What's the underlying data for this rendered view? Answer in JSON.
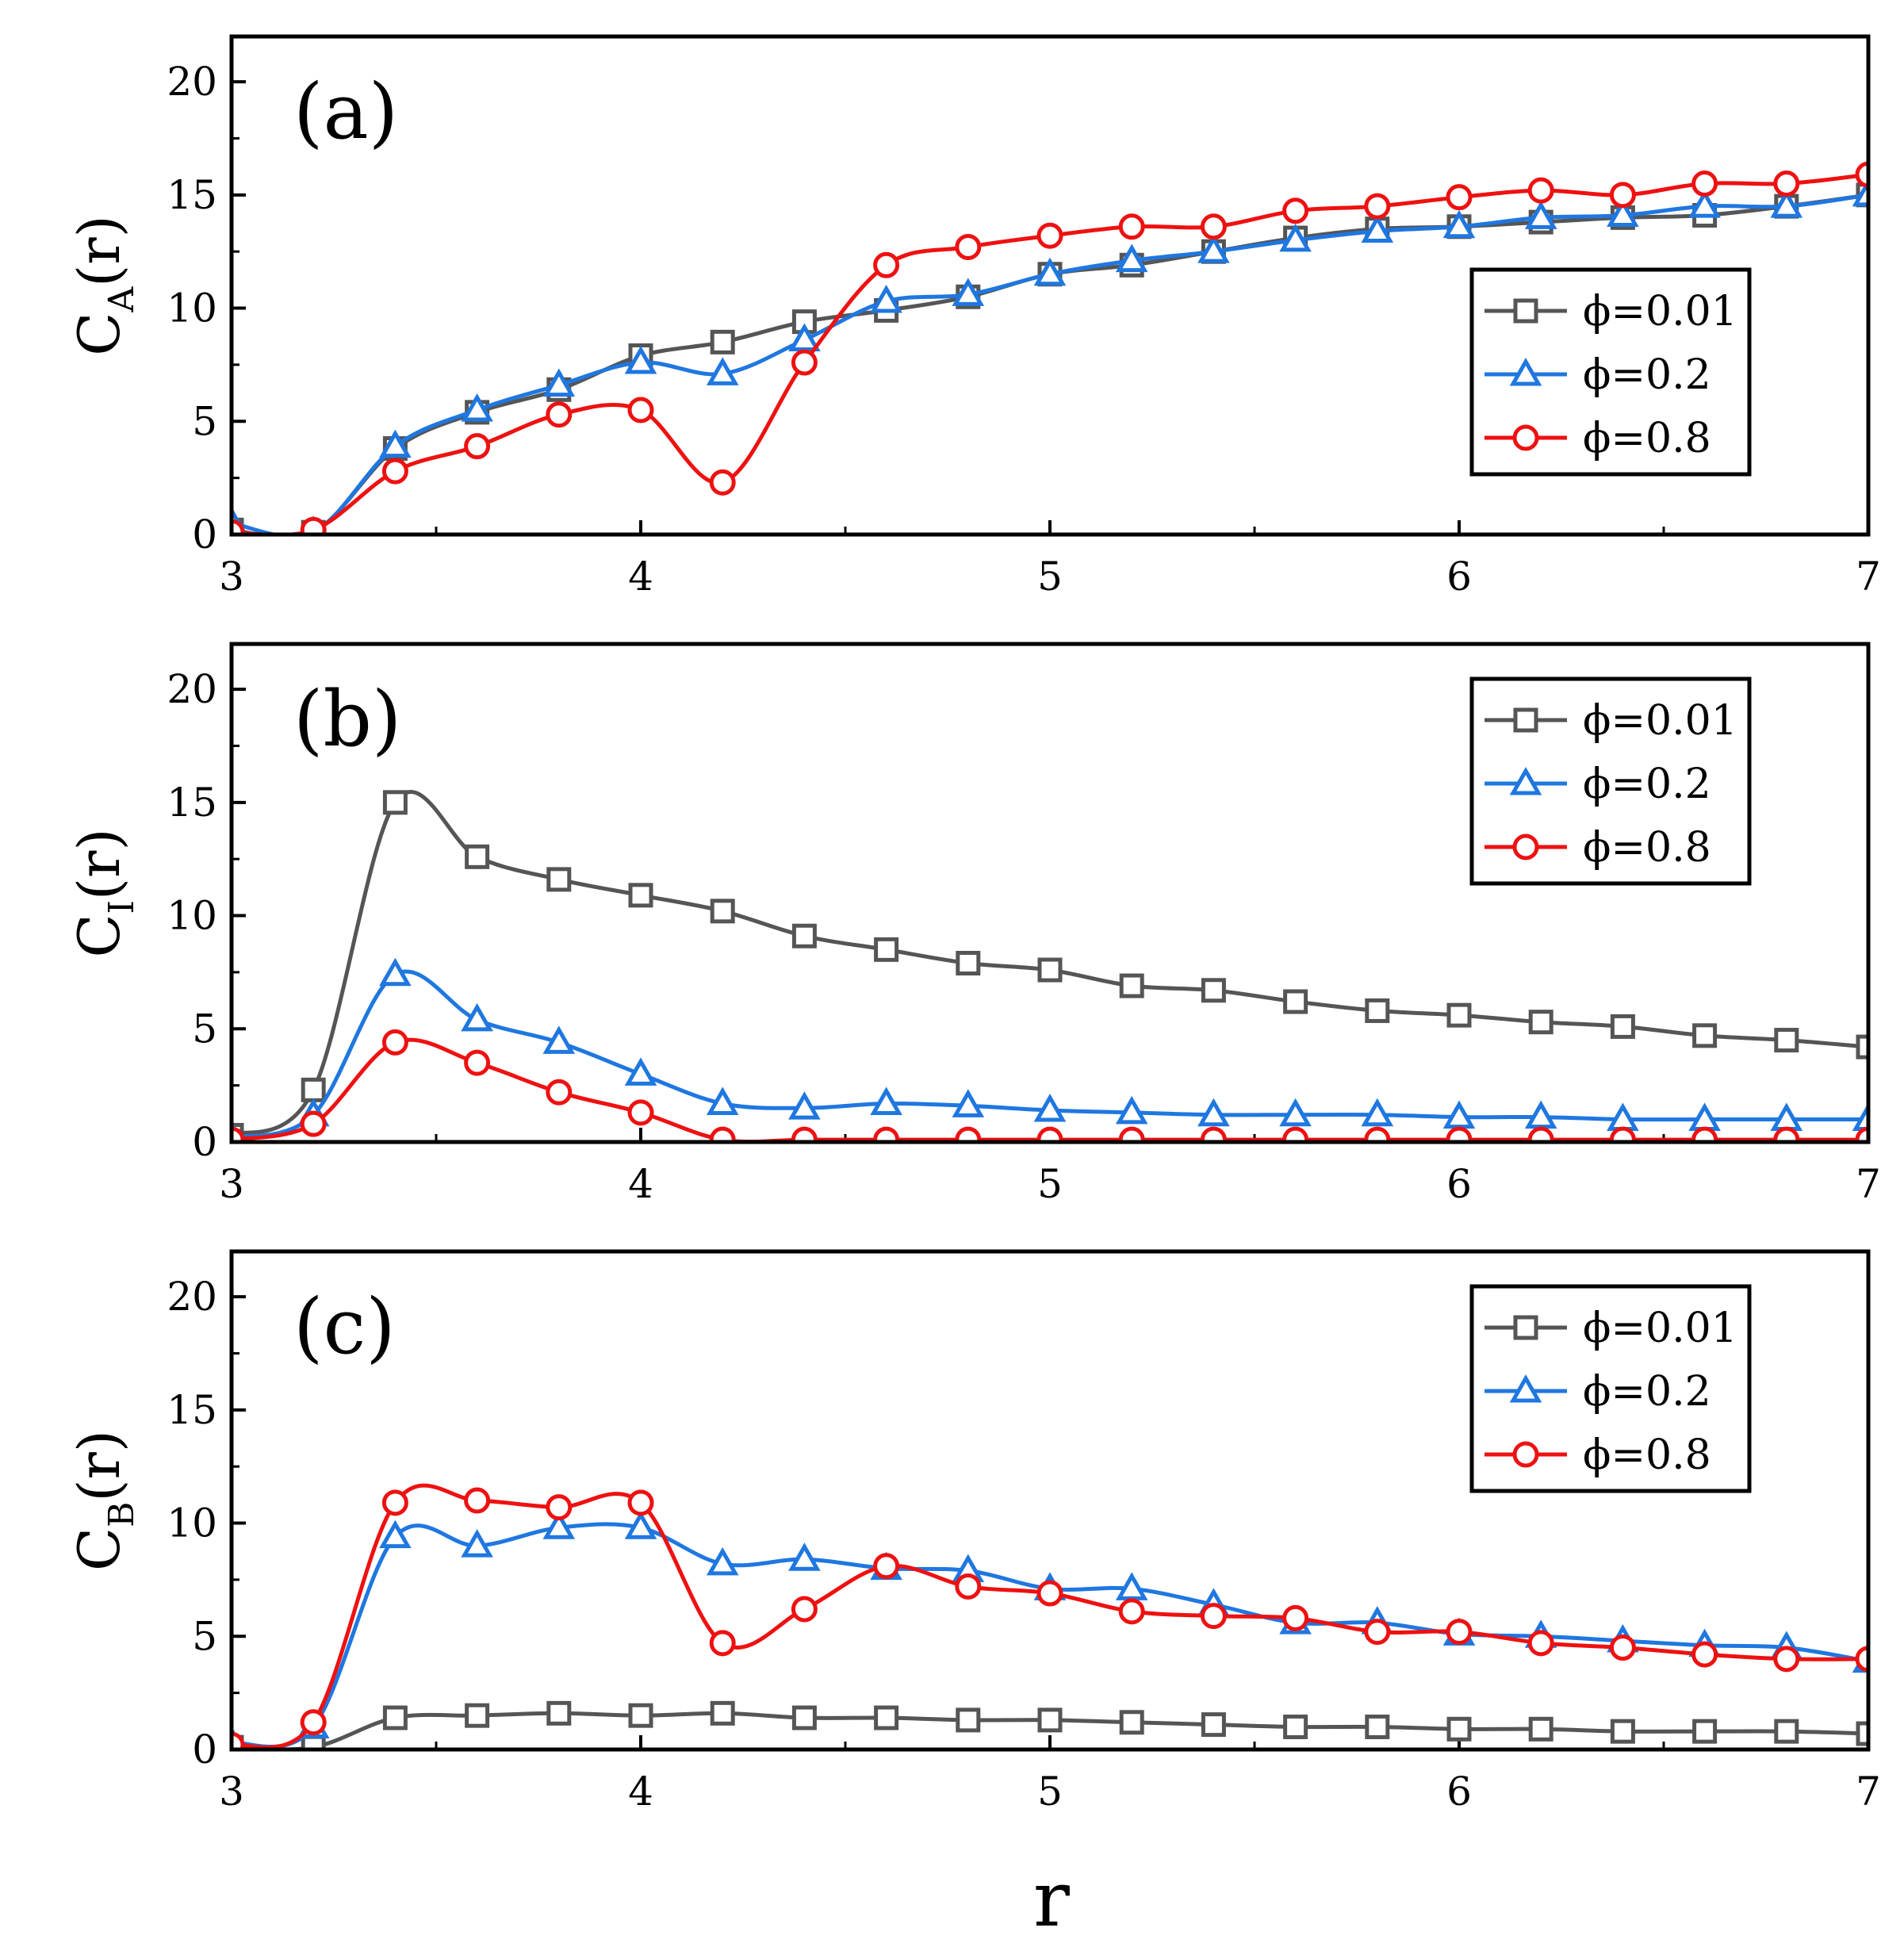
{
  "colors": {
    "phi_001": "#555555",
    "phi_02": "#1f77e0",
    "phi_08": "#ee1111"
  },
  "xlabel": "r",
  "chart_data": [
    {
      "type": "line",
      "panel_label": "(a)",
      "ylabel": {
        "main": "C",
        "sub": "A",
        "arg": "(r)"
      },
      "xlim": [
        3,
        7
      ],
      "ylim": [
        0,
        22
      ],
      "x_ticks": [
        "3",
        "4",
        "5",
        "6",
        "7"
      ],
      "y_ticks": [
        "0",
        "5",
        "10",
        "15",
        "20"
      ],
      "legend_position": "right-middle",
      "series": [
        {
          "name": "ϕ=0.01",
          "marker": "square",
          "color": "#555555",
          "x": [
            3.0,
            3.2,
            3.4,
            3.6,
            3.8,
            4.0,
            4.2,
            4.4,
            4.6,
            4.8,
            5.0,
            5.2,
            5.4,
            5.6,
            5.8,
            6.0,
            6.2,
            6.4,
            6.6,
            6.8,
            7.0
          ],
          "y": [
            0.2,
            0.1,
            3.8,
            5.4,
            6.4,
            7.9,
            8.5,
            9.4,
            9.9,
            10.5,
            11.5,
            11.9,
            12.5,
            13.1,
            13.5,
            13.6,
            13.8,
            14.0,
            14.1,
            14.5,
            15.0
          ]
        },
        {
          "name": "ϕ=0.2",
          "marker": "triangle",
          "color": "#1f77e0",
          "x": [
            3.0,
            3.2,
            3.4,
            3.6,
            3.8,
            4.0,
            4.2,
            4.4,
            4.6,
            4.8,
            5.0,
            5.2,
            5.4,
            5.6,
            5.8,
            6.0,
            6.2,
            6.4,
            6.6,
            6.8,
            7.0
          ],
          "y": [
            0.5,
            0.1,
            3.9,
            5.5,
            6.6,
            7.6,
            7.1,
            8.6,
            10.3,
            10.6,
            11.5,
            12.1,
            12.5,
            13.0,
            13.4,
            13.6,
            14.0,
            14.1,
            14.5,
            14.5,
            15.0
          ]
        },
        {
          "name": "ϕ=0.8",
          "marker": "circle",
          "color": "#ee1111",
          "x": [
            3.0,
            3.2,
            3.4,
            3.6,
            3.8,
            4.0,
            4.2,
            4.4,
            4.6,
            4.8,
            5.0,
            5.2,
            5.4,
            5.6,
            5.8,
            6.0,
            6.2,
            6.4,
            6.6,
            6.8,
            7.0
          ],
          "y": [
            0.1,
            0.2,
            2.8,
            3.9,
            5.3,
            5.5,
            2.3,
            7.6,
            11.9,
            12.7,
            13.2,
            13.6,
            13.6,
            14.3,
            14.5,
            14.9,
            15.2,
            15.0,
            15.5,
            15.5,
            15.9
          ]
        }
      ]
    },
    {
      "type": "line",
      "panel_label": "(b)",
      "ylabel": {
        "main": "C",
        "sub": "I",
        "arg": "(r)"
      },
      "xlim": [
        3,
        7
      ],
      "ylim": [
        0,
        22
      ],
      "x_ticks": [
        "3",
        "4",
        "5",
        "6",
        "7"
      ],
      "y_ticks": [
        "0",
        "5",
        "10",
        "15",
        "20"
      ],
      "legend_position": "top-right",
      "series": [
        {
          "name": "ϕ=0.01",
          "marker": "square",
          "color": "#555555",
          "x": [
            3.0,
            3.2,
            3.4,
            3.6,
            3.8,
            4.0,
            4.2,
            4.4,
            4.6,
            4.8,
            5.0,
            5.2,
            5.4,
            5.6,
            5.8,
            6.0,
            6.2,
            6.4,
            6.6,
            6.8,
            7.0
          ],
          "y": [
            0.3,
            2.3,
            15.0,
            12.6,
            11.6,
            10.9,
            10.2,
            9.1,
            8.5,
            7.9,
            7.6,
            6.9,
            6.7,
            6.2,
            5.8,
            5.6,
            5.3,
            5.1,
            4.7,
            4.5,
            4.2
          ]
        },
        {
          "name": "ϕ=0.2",
          "marker": "triangle",
          "color": "#1f77e0",
          "x": [
            3.0,
            3.2,
            3.4,
            3.6,
            3.8,
            4.0,
            4.2,
            4.4,
            4.6,
            4.8,
            5.0,
            5.2,
            5.4,
            5.6,
            5.8,
            6.0,
            6.2,
            6.4,
            6.6,
            6.8,
            7.0
          ],
          "y": [
            0.2,
            1.2,
            7.4,
            5.4,
            4.4,
            3.0,
            1.7,
            1.5,
            1.7,
            1.6,
            1.4,
            1.3,
            1.2,
            1.2,
            1.2,
            1.1,
            1.1,
            1.0,
            1.0,
            1.0,
            1.0
          ]
        },
        {
          "name": "ϕ=0.8",
          "marker": "circle",
          "color": "#ee1111",
          "x": [
            3.0,
            3.2,
            3.4,
            3.6,
            3.8,
            4.0,
            4.2,
            4.4,
            4.6,
            4.8,
            5.0,
            5.2,
            5.4,
            5.6,
            5.8,
            6.0,
            6.2,
            6.4,
            6.6,
            6.8,
            7.0
          ],
          "y": [
            0.1,
            0.8,
            4.4,
            3.5,
            2.2,
            1.3,
            0.1,
            0.1,
            0.1,
            0.1,
            0.1,
            0.1,
            0.1,
            0.1,
            0.1,
            0.1,
            0.1,
            0.1,
            0.1,
            0.1,
            0.1
          ]
        }
      ]
    },
    {
      "type": "line",
      "panel_label": "(c)",
      "ylabel": {
        "main": "C",
        "sub": "B",
        "arg": "(r)"
      },
      "xlim": [
        3,
        7
      ],
      "ylim": [
        0,
        22
      ],
      "x_ticks": [
        "3",
        "4",
        "5",
        "6",
        "7"
      ],
      "y_ticks": [
        "0",
        "5",
        "10",
        "15",
        "20"
      ],
      "legend_position": "top-right",
      "series": [
        {
          "name": "ϕ=0.01",
          "marker": "square",
          "color": "#555555",
          "x": [
            3.0,
            3.2,
            3.4,
            3.6,
            3.8,
            4.0,
            4.2,
            4.4,
            4.6,
            4.8,
            5.0,
            5.2,
            5.4,
            5.6,
            5.8,
            6.0,
            6.2,
            6.4,
            6.6,
            6.8,
            7.0
          ],
          "y": [
            0.1,
            0.1,
            1.4,
            1.5,
            1.6,
            1.5,
            1.6,
            1.4,
            1.4,
            1.3,
            1.3,
            1.2,
            1.1,
            1.0,
            1.0,
            0.9,
            0.9,
            0.8,
            0.8,
            0.8,
            0.7
          ]
        },
        {
          "name": "ϕ=0.2",
          "marker": "triangle",
          "color": "#1f77e0",
          "x": [
            3.0,
            3.2,
            3.4,
            3.6,
            3.8,
            4.0,
            4.2,
            4.4,
            4.6,
            4.8,
            5.0,
            5.2,
            5.4,
            5.6,
            5.8,
            6.0,
            6.2,
            6.4,
            6.6,
            6.8,
            7.0
          ],
          "y": [
            0.3,
            1.0,
            9.4,
            9.0,
            9.8,
            9.8,
            8.2,
            8.4,
            8.0,
            7.9,
            7.1,
            7.1,
            6.4,
            5.6,
            5.6,
            5.1,
            5.0,
            4.8,
            4.6,
            4.5,
            3.9
          ]
        },
        {
          "name": "ϕ=0.8",
          "marker": "circle",
          "color": "#ee1111",
          "x": [
            3.0,
            3.2,
            3.4,
            3.6,
            3.8,
            4.0,
            4.2,
            4.4,
            4.6,
            4.8,
            5.0,
            5.2,
            5.4,
            5.6,
            5.8,
            6.0,
            6.2,
            6.4,
            6.6,
            6.8,
            7.0
          ],
          "y": [
            0.2,
            1.2,
            10.9,
            11.0,
            10.7,
            10.9,
            4.7,
            6.2,
            8.1,
            7.2,
            6.9,
            6.1,
            5.9,
            5.8,
            5.2,
            5.2,
            4.7,
            4.5,
            4.2,
            4.0,
            4.0
          ]
        }
      ]
    }
  ]
}
